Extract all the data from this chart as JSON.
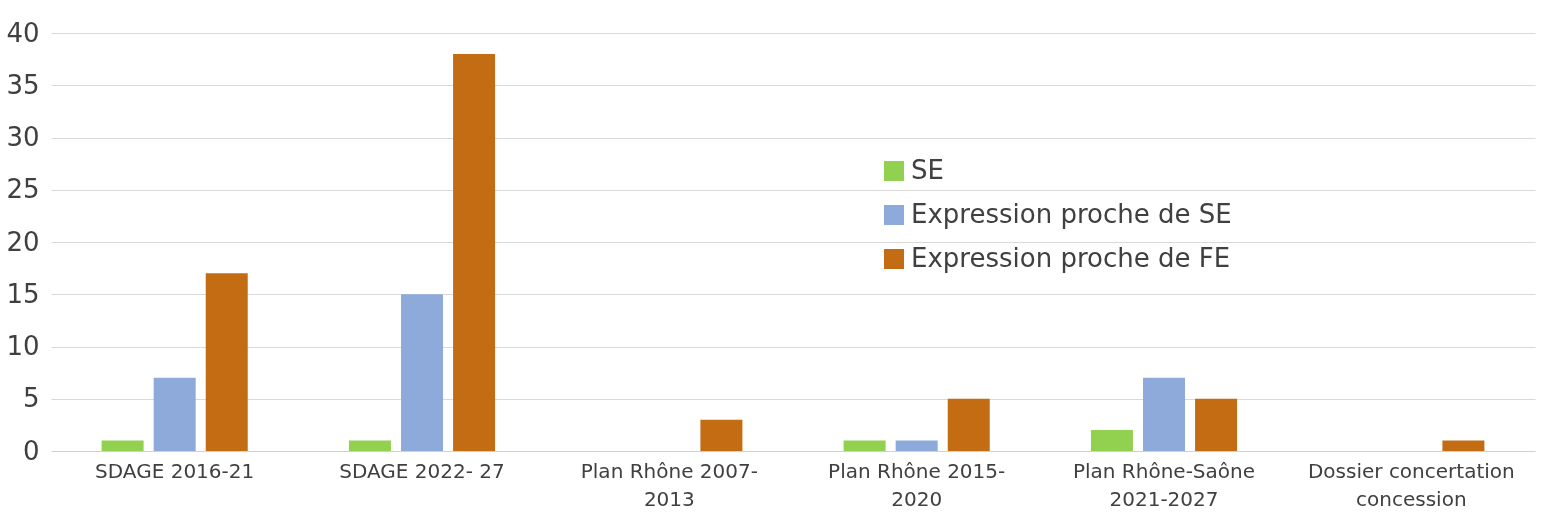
{
  "chart_data": {
    "type": "bar",
    "categories": [
      "SDAGE 2016-21",
      "SDAGE 2022- 27",
      "Plan Rhône 2007-2013",
      "Plan Rhône 2015-2020",
      "Plan Rhône-Saône 2021-2027",
      "Dossier concertation concession"
    ],
    "series": [
      {
        "name": "SE",
        "color": "#92d050",
        "values": [
          1,
          1,
          0,
          1,
          2,
          0
        ]
      },
      {
        "name": "Expression proche de SE",
        "color": "#8eaadb",
        "values": [
          7,
          15,
          0,
          1,
          7,
          0
        ]
      },
      {
        "name": "Expression proche de FE",
        "color": "#c46c14",
        "values": [
          17,
          38,
          3,
          5,
          5,
          1
        ]
      }
    ],
    "ylim": [
      0,
      40
    ],
    "yticks": [
      0,
      5,
      10,
      15,
      20,
      25,
      30,
      35,
      40
    ],
    "grid": "y",
    "legend": "center"
  }
}
